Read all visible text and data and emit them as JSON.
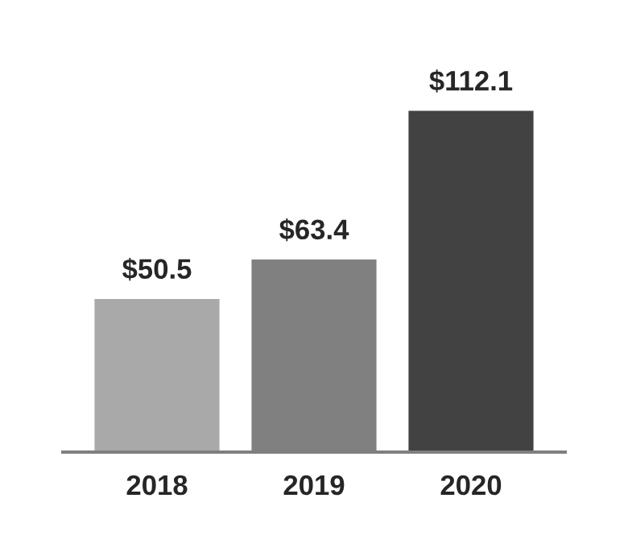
{
  "chart_data": {
    "type": "bar",
    "categories": [
      "2018",
      "2019",
      "2020"
    ],
    "values": [
      50.5,
      63.4,
      112.1
    ],
    "colors": [
      "#a9a9a9",
      "#808080",
      "#424242"
    ],
    "value_labels": [
      "$50.5",
      "$63.4",
      "$112.1"
    ],
    "grid": false,
    "legend": false
  }
}
